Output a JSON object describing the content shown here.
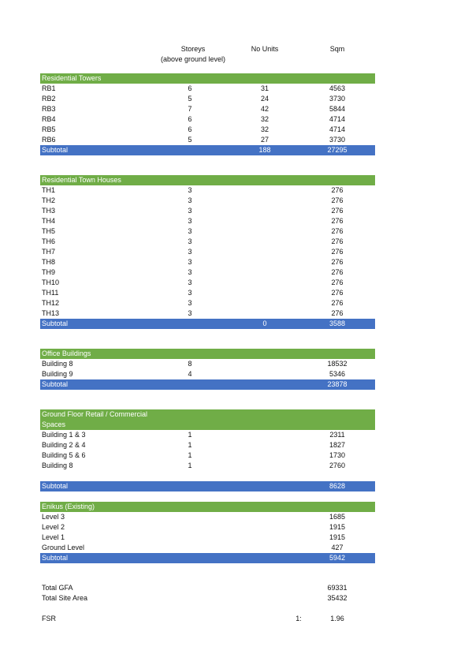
{
  "header": {
    "storeys_line1": "Storeys",
    "storeys_line2": "(above ground level)",
    "units": "No Units",
    "sqm": "Sqm"
  },
  "residential_towers": {
    "title": "Residential Towers",
    "rows": [
      {
        "name": "RB1",
        "storeys": "6",
        "units": "31",
        "sqm": "4563"
      },
      {
        "name": "RB2",
        "storeys": "5",
        "units": "24",
        "sqm": "3730"
      },
      {
        "name": "RB3",
        "storeys": "7",
        "units": "42",
        "sqm": "5844"
      },
      {
        "name": "RB4",
        "storeys": "6",
        "units": "32",
        "sqm": "4714"
      },
      {
        "name": "RB5",
        "storeys": "6",
        "units": "32",
        "sqm": "4714"
      },
      {
        "name": "RB6",
        "storeys": "5",
        "units": "27",
        "sqm": "3730"
      }
    ],
    "subtotal": {
      "label": "Subtotal",
      "units": "188",
      "sqm": "27295"
    }
  },
  "town_houses": {
    "title": "Residential Town Houses",
    "rows": [
      {
        "name": "TH1",
        "storeys": "3",
        "sqm": "276"
      },
      {
        "name": "TH2",
        "storeys": "3",
        "sqm": "276"
      },
      {
        "name": "TH3",
        "storeys": "3",
        "sqm": "276"
      },
      {
        "name": "TH4",
        "storeys": "3",
        "sqm": "276"
      },
      {
        "name": "TH5",
        "storeys": "3",
        "sqm": "276"
      },
      {
        "name": "TH6",
        "storeys": "3",
        "sqm": "276"
      },
      {
        "name": "TH7",
        "storeys": "3",
        "sqm": "276"
      },
      {
        "name": "TH8",
        "storeys": "3",
        "sqm": "276"
      },
      {
        "name": "TH9",
        "storeys": "3",
        "sqm": "276"
      },
      {
        "name": "TH10",
        "storeys": "3",
        "sqm": "276"
      },
      {
        "name": "TH11",
        "storeys": "3",
        "sqm": "276"
      },
      {
        "name": "TH12",
        "storeys": "3",
        "sqm": "276"
      },
      {
        "name": "TH13",
        "storeys": "3",
        "sqm": "276"
      }
    ],
    "subtotal": {
      "label": "Subtotal",
      "units": "0",
      "sqm": "3588"
    }
  },
  "office_buildings": {
    "title": "Office Buildings",
    "rows": [
      {
        "name": "Building 8",
        "storeys": "8",
        "sqm": "18532"
      },
      {
        "name": "Building 9",
        "storeys": "4",
        "sqm": "5346"
      }
    ],
    "subtotal": {
      "label": "Subtotal",
      "sqm": "23878"
    }
  },
  "retail": {
    "title": "Ground Floor Retail / Commercial Spaces",
    "rows": [
      {
        "name": "Building 1 & 3",
        "storeys": "1",
        "sqm": "2311"
      },
      {
        "name": "Building 2 & 4",
        "storeys": "1",
        "sqm": "1827"
      },
      {
        "name": "Building 5 & 6",
        "storeys": "1",
        "sqm": "1730"
      },
      {
        "name": "Building 8",
        "storeys": "1",
        "sqm": "2760"
      }
    ],
    "subtotal": {
      "label": "Subtotal",
      "sqm": "8628"
    }
  },
  "enikus": {
    "title": "Enikus (Existing)",
    "rows": [
      {
        "name": "Level 3",
        "sqm": "1685"
      },
      {
        "name": "Level 2",
        "sqm": "1915"
      },
      {
        "name": "Level 1",
        "sqm": "1915"
      },
      {
        "name": "Ground Level",
        "sqm": "427"
      }
    ],
    "subtotal": {
      "label": "Subtotal",
      "sqm": "5942"
    }
  },
  "totals": {
    "gfa_label": "Total GFA",
    "gfa_value": "69331",
    "site_label": "Total Site Area",
    "site_value": "35432"
  },
  "fsr": {
    "label": "FSR",
    "ratio_prefix": "1:",
    "value": "1.96"
  },
  "colors": {
    "section_header": "#70ad47",
    "subtotal": "#4472c4"
  }
}
